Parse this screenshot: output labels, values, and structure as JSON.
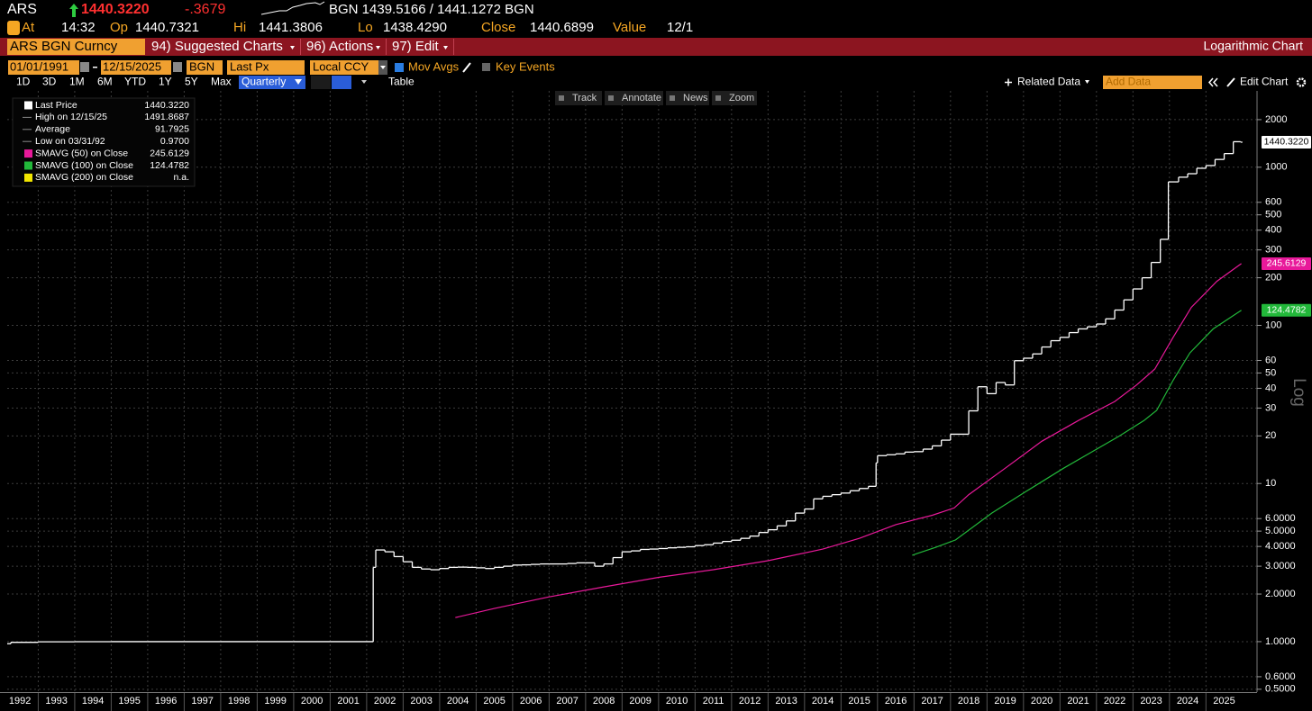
{
  "header": {
    "ticker": "ARS",
    "last": "1440.3220",
    "change": "-.3679",
    "quote": "BGN 1439.5166 / 1441.1272 BGN",
    "fields": [
      {
        "label": "At",
        "value": "14:32"
      },
      {
        "label": "Op",
        "value": "1440.7321"
      },
      {
        "label": "Hi",
        "value": "1441.3806"
      },
      {
        "label": "Lo",
        "value": "1438.4290"
      },
      {
        "label": "Close",
        "value": "1440.6899"
      },
      {
        "label": "Value",
        "value": "12/1"
      }
    ]
  },
  "menu_bar": {
    "security": "ARS BGN Curncy",
    "items": [
      "94) Suggested Charts",
      "96) Actions",
      "97) Edit"
    ],
    "title": "Logarithmic Chart"
  },
  "controls": {
    "start_date": "01/01/1991",
    "end_date": "12/15/2025",
    "source": "BGN",
    "field": "Last Px",
    "currency": "Local CCY",
    "options": [
      "Mov Avgs",
      "Key Events"
    ],
    "periods": [
      "1D",
      "3D",
      "1M",
      "6M",
      "YTD",
      "1Y",
      "5Y",
      "Max"
    ],
    "frequency": "Quarterly",
    "table": "Table",
    "related": "Related Data",
    "add_data": "Add Data",
    "edit_chart": "Edit Chart"
  },
  "tools": [
    "Track",
    "Annotate",
    "News",
    "Zoom"
  ],
  "chart_data": {
    "type": "line",
    "log_scale": true,
    "grid": true,
    "y_axis_label": "Log",
    "xlim": [
      1992.15,
      2026.4
    ],
    "ylim": [
      0.486,
      2960
    ],
    "xticks": [
      1992,
      1993,
      1994,
      1995,
      1996,
      1997,
      1998,
      1999,
      2000,
      2001,
      2002,
      2003,
      2004,
      2005,
      2006,
      2007,
      2008,
      2009,
      2010,
      2011,
      2012,
      2013,
      2014,
      2015,
      2016,
      2017,
      2018,
      2019,
      2020,
      2021,
      2022,
      2023,
      2024,
      2025
    ],
    "yticks": [
      {
        "value": 0.5,
        "label": "0.5000"
      },
      {
        "value": 0.6,
        "label": "0.6000"
      },
      {
        "value": 1,
        "label": "1.0000"
      },
      {
        "value": 2,
        "label": "2.0000"
      },
      {
        "value": 3,
        "label": "3.0000"
      },
      {
        "value": 4,
        "label": "4.0000"
      },
      {
        "value": 5,
        "label": "5.0000"
      },
      {
        "value": 6,
        "label": "6.0000"
      },
      10,
      20,
      30,
      40,
      50,
      60,
      100,
      200,
      300,
      400,
      500,
      600,
      1000,
      2000
    ],
    "series": [
      {
        "name": "Last Price",
        "color": "#ffffff",
        "step": true,
        "last_label": "1440.3220",
        "x": [
          1992.15,
          1992.25,
          1993,
          1994,
          1995,
          1996,
          1997,
          1998,
          1999,
          2000,
          2001,
          2002.18,
          2002.25,
          2002.5,
          2002.75,
          2003.0,
          2003.25,
          2003.5,
          2003.75,
          2004.0,
          2004.25,
          2004.5,
          2004.75,
          2005.0,
          2005.25,
          2005.5,
          2005.75,
          2006.0,
          2006.25,
          2006.5,
          2006.75,
          2007.0,
          2007.25,
          2007.5,
          2007.75,
          2008.0,
          2008.25,
          2008.5,
          2008.75,
          2009.0,
          2009.25,
          2009.5,
          2009.75,
          2010.0,
          2010.25,
          2010.5,
          2010.75,
          2011.0,
          2011.25,
          2011.5,
          2011.75,
          2012.0,
          2012.25,
          2012.5,
          2012.75,
          2013.0,
          2013.25,
          2013.5,
          2013.75,
          2014.0,
          2014.25,
          2014.5,
          2014.75,
          2015.0,
          2015.25,
          2015.5,
          2015.75,
          2015.96,
          2016.0,
          2016.25,
          2016.5,
          2016.75,
          2017.0,
          2017.25,
          2017.5,
          2017.75,
          2018.0,
          2018.5,
          2018.75,
          2019.0,
          2019.25,
          2019.5,
          2019.75,
          2020.0,
          2020.25,
          2020.5,
          2020.75,
          2021.0,
          2021.25,
          2021.5,
          2021.75,
          2022.0,
          2022.25,
          2022.5,
          2022.75,
          2023.0,
          2023.25,
          2023.5,
          2023.75,
          2023.97,
          2024.25,
          2024.5,
          2024.75,
          2025.0,
          2025.25,
          2025.5,
          2025.75,
          2025.95
        ],
        "values": [
          0.97,
          0.99,
          0.998,
          0.999,
          1,
          1,
          1,
          1,
          1,
          1,
          1,
          2.95,
          3.8,
          3.7,
          3.45,
          3.2,
          2.95,
          2.88,
          2.85,
          2.9,
          2.95,
          2.96,
          2.95,
          2.93,
          2.9,
          2.95,
          3.0,
          3.05,
          3.06,
          3.08,
          3.1,
          3.1,
          3.1,
          3.12,
          3.15,
          3.15,
          3.0,
          3.1,
          3.4,
          3.7,
          3.75,
          3.83,
          3.85,
          3.88,
          3.92,
          3.95,
          3.98,
          4.05,
          4.1,
          4.2,
          4.3,
          4.38,
          4.5,
          4.65,
          4.9,
          5.1,
          5.4,
          5.8,
          6.5,
          6.9,
          8.0,
          8.3,
          8.5,
          8.7,
          9.0,
          9.3,
          9.6,
          13.5,
          15.0,
          15.2,
          15.4,
          15.8,
          15.9,
          16.5,
          17.3,
          18.8,
          20.5,
          28.8,
          40.9,
          37.0,
          43.5,
          42.0,
          59.8,
          62.0,
          66.0,
          73.0,
          80.0,
          84.0,
          90.0,
          95.0,
          98.0,
          102.0,
          110.0,
          125.0,
          145.0,
          170.0,
          200.0,
          250.0,
          350.0,
          808.0,
          865.0,
          910.0,
          985.0,
          1025.0,
          1120.0,
          1220.0,
          1450.0,
          1440.322
        ]
      },
      {
        "name": "SMAVG (50)  on Close",
        "color": "#e8199a",
        "x": [
          2004.43,
          2005.5,
          2007,
          2008.5,
          2010,
          2011.5,
          2013,
          2014.5,
          2015.5,
          2016.5,
          2017.5,
          2018.1,
          2018.5,
          2019.5,
          2020.5,
          2021.5,
          2022.5,
          2023.1,
          2023.6,
          2024.1,
          2024.6,
          2025.3,
          2025.97
        ],
        "values": [
          1.42,
          1.62,
          1.92,
          2.22,
          2.55,
          2.85,
          3.25,
          3.85,
          4.5,
          5.5,
          6.3,
          7.0,
          8.5,
          12.5,
          18.5,
          25,
          33,
          42,
          53,
          84,
          130,
          190,
          245.6129
        ]
      },
      {
        "name": "SMAVG (100)  on Close",
        "color": "#22b83a",
        "x": [
          2016.95,
          2017.6,
          2018.14,
          2019.13,
          2020.1,
          2021.1,
          2022.6,
          2023.3,
          2023.65,
          2024.1,
          2024.56,
          2025.2,
          2025.97
        ],
        "values": [
          3.52,
          3.95,
          4.4,
          6.5,
          9.0,
          12.5,
          19.8,
          25,
          29,
          45,
          67,
          95,
          124.4782
        ]
      },
      {
        "name": "SMAVG (200)  on Close",
        "color": "#f2e600",
        "last_label": "n.a.",
        "x": [],
        "values": []
      }
    ],
    "stats": [
      {
        "label": "High on 12/15/25",
        "value": "1491.8687"
      },
      {
        "label": "Average",
        "value": "91.7925"
      },
      {
        "label": "Low on 03/31/92",
        "value": "0.9700"
      }
    ]
  }
}
